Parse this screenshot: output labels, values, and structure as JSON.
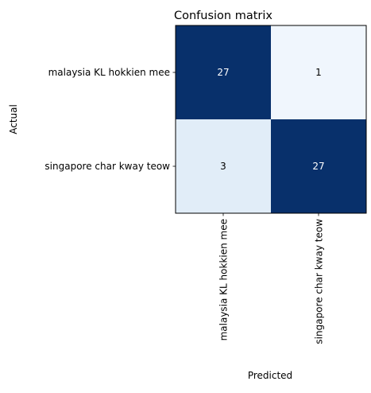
{
  "chart_data": {
    "type": "heatmap",
    "title": "Confusion matrix",
    "xlabel": "Predicted",
    "ylabel": "Actual",
    "x_categories": [
      "malaysia KL hokkien mee",
      "singapore char kway teow"
    ],
    "y_categories": [
      "malaysia KL hokkien mee",
      "singapore char kway teow"
    ],
    "values": [
      [
        27,
        1
      ],
      [
        3,
        27
      ]
    ],
    "colormap": "Blues",
    "vmin": 0,
    "vmax": 27,
    "low_color": "#f7fbff",
    "high_color": "#08306b"
  }
}
